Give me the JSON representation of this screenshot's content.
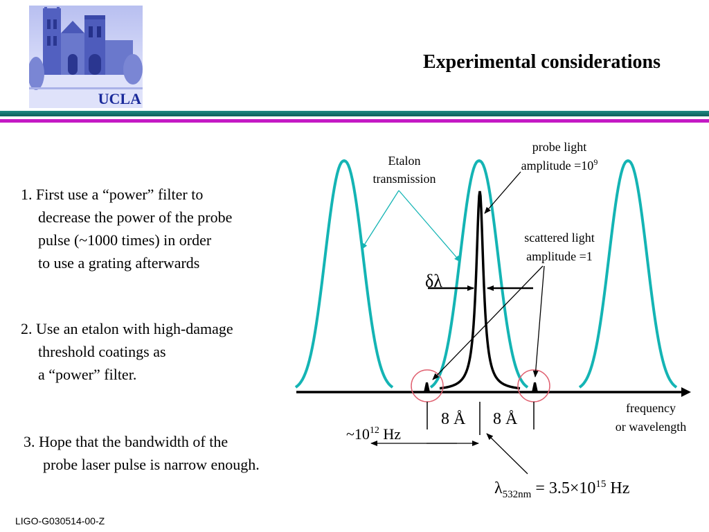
{
  "header": {
    "logo_text": "UCLA",
    "title": "Experimental considerations"
  },
  "colors": {
    "etalon_curve": "#14b4b4",
    "header_band": "#1f8a84",
    "accent_band": "#c41ac4",
    "circle": "#e06070",
    "logo_blue": "#1a2a9a"
  },
  "items": [
    {
      "lines": [
        "1. First use a “power” filter to",
        "decrease the power of the probe",
        "pulse (~1000 times) in order",
        "to use a grating afterwards"
      ]
    },
    {
      "lines": [
        "2. Use an etalon with high-damage",
        "threshold coatings as",
        "a “power” filter."
      ]
    },
    {
      "lines": [
        "3. Hope that the bandwidth of the",
        "probe laser pulse is narrow enough."
      ]
    }
  ],
  "diagram": {
    "etalon_label": [
      "Etalon",
      "transmission"
    ],
    "probe_label": [
      "probe light",
      "amplitude =10"
    ],
    "probe_exp": "9",
    "scatter_label": [
      "scattered light",
      "amplitude =1"
    ],
    "delta_lambda": "δλ",
    "axis_label": [
      "frequency",
      "or wavelength"
    ],
    "spacing_left": "8 Å",
    "spacing_right": "8 Å",
    "hz_prefix": "~10",
    "hz_exp": "12",
    "hz_suffix": " Hz",
    "lambda_symbol": "λ",
    "lambda_sub": "532nm",
    "lambda_eq": " = 3.5×10",
    "lambda_exp": "15",
    "lambda_suffix": " Hz"
  },
  "footer": "LIGO-G030514-00-Z"
}
